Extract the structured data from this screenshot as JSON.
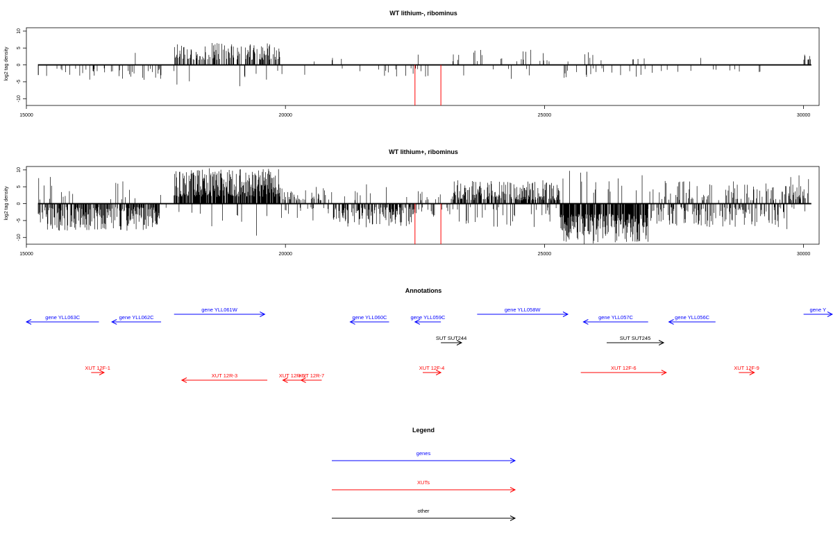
{
  "chart_data": [
    {
      "type": "bar",
      "title": "WT lithium-, ribominus",
      "ylabel": "log2 tag density",
      "xlim": [
        15000,
        30300
      ],
      "ylim": [
        -12,
        11
      ],
      "x_ticks": [
        15000,
        20000,
        25000,
        30000
      ],
      "x_tick_labels": [
        "15000",
        "20000",
        "25000",
        "30000"
      ],
      "y_ticks": [
        10,
        5,
        0,
        -5,
        -10
      ],
      "y_tick_labels": [
        "10",
        "5",
        "0",
        "-5",
        "-10"
      ],
      "grid": false,
      "track_range": [
        15230,
        30150
      ],
      "regions": [
        {
          "x0": 15230,
          "x1": 17600,
          "density": 0.15,
          "sign": -1,
          "min": 1,
          "max": 4.5,
          "neg_bias": 0.95
        },
        {
          "x0": 17850,
          "x1": 19900,
          "density": 0.5,
          "sign": 1,
          "min": 1.5,
          "max": 6.5,
          "neg_bias": 0.05
        },
        {
          "x0": 19900,
          "x1": 21000,
          "density": 0.04,
          "sign": 1,
          "min": 1,
          "max": 3,
          "neg_bias": 0.5
        },
        {
          "x0": 21000,
          "x1": 23200,
          "density": 0.05,
          "sign": -1,
          "min": 1,
          "max": 3.5,
          "neg_bias": 0.9
        },
        {
          "x0": 23200,
          "x1": 25100,
          "density": 0.12,
          "sign": 1,
          "min": 1,
          "max": 4.5,
          "neg_bias": 0.2
        },
        {
          "x0": 25300,
          "x1": 27000,
          "density": 0.12,
          "sign": 1,
          "min": 1,
          "max": 4,
          "neg_bias": 0.5
        },
        {
          "x0": 27000,
          "x1": 29300,
          "density": 0.04,
          "sign": -1,
          "min": 1,
          "max": 2.5,
          "neg_bias": 0.8
        },
        {
          "x0": 29900,
          "x1": 30150,
          "density": 0.2,
          "sign": 1,
          "min": 1.5,
          "max": 3.5,
          "neg_bias": 0.05
        }
      ],
      "highlight_lines": [
        {
          "x": 22500,
          "value": -12,
          "color": "#ff0000"
        },
        {
          "x": 23000,
          "value": -12,
          "color": "#ff0000"
        }
      ]
    },
    {
      "type": "bar",
      "title": "WT lithium+, ribominus",
      "ylabel": "log2 tag density",
      "xlim": [
        15000,
        30300
      ],
      "ylim": [
        -12,
        11
      ],
      "x_ticks": [
        15000,
        20000,
        25000,
        30000
      ],
      "x_tick_labels": [
        "15000",
        "20000",
        "25000",
        "30000"
      ],
      "y_ticks": [
        10,
        5,
        0,
        -5,
        -10
      ],
      "y_tick_labels": [
        "10",
        "5",
        "0",
        "-5",
        "-10"
      ],
      "grid": false,
      "track_range": [
        15230,
        30150
      ],
      "regions": [
        {
          "x0": 15230,
          "x1": 17600,
          "density": 0.7,
          "sign": -1,
          "min": 1,
          "max": 8,
          "neg_bias": 0.95
        },
        {
          "x0": 17600,
          "x1": 17850,
          "density": 0.05,
          "sign": 1,
          "min": 1,
          "max": 2,
          "neg_bias": 0.5
        },
        {
          "x0": 17850,
          "x1": 19900,
          "density": 0.9,
          "sign": 1,
          "min": 2,
          "max": 10.5,
          "neg_bias": 0.05
        },
        {
          "x0": 19900,
          "x1": 20900,
          "density": 0.4,
          "sign": 1,
          "min": 1,
          "max": 5,
          "neg_bias": 0.3
        },
        {
          "x0": 20900,
          "x1": 22500,
          "density": 0.6,
          "sign": -1,
          "min": 1,
          "max": 7,
          "neg_bias": 0.9
        },
        {
          "x0": 22500,
          "x1": 23200,
          "density": 0.3,
          "sign": 1,
          "min": 1,
          "max": 4,
          "neg_bias": 0.5
        },
        {
          "x0": 23200,
          "x1": 25300,
          "density": 0.75,
          "sign": 1,
          "min": 1,
          "max": 7,
          "neg_bias": 0.15
        },
        {
          "x0": 25300,
          "x1": 27000,
          "density": 0.95,
          "sign": -1,
          "min": 3,
          "max": 12,
          "neg_bias": 0.95
        },
        {
          "x0": 27000,
          "x1": 29600,
          "density": 0.6,
          "sign": -1,
          "min": 1,
          "max": 7,
          "neg_bias": 0.6
        },
        {
          "x0": 29600,
          "x1": 30150,
          "density": 0.4,
          "sign": 1,
          "min": 1,
          "max": 8.5,
          "neg_bias": 0.2
        }
      ],
      "highlight_lines": [
        {
          "x": 22500,
          "value": -12,
          "color": "#ff0000"
        },
        {
          "x": 23000,
          "value": -12,
          "color": "#ff0000"
        }
      ]
    }
  ],
  "annotations": {
    "title": "Annotations",
    "colors": {
      "gene": "#0000ff",
      "xut": "#ff0000",
      "other": "#000000"
    },
    "features": [
      {
        "label": "gene YLL063C",
        "class": "gene",
        "start": 15000,
        "end": 16400,
        "strand": "-",
        "row": 1
      },
      {
        "label": "gene YLL062C",
        "class": "gene",
        "start": 16650,
        "end": 17600,
        "strand": "-",
        "row": 1
      },
      {
        "label": "gene YLL061W",
        "class": "gene",
        "start": 17850,
        "end": 19600,
        "strand": "+",
        "row": 0
      },
      {
        "label": "gene YLL060C",
        "class": "gene",
        "start": 21250,
        "end": 22000,
        "strand": "-",
        "row": 1
      },
      {
        "label": "gene YLL059C",
        "class": "gene",
        "start": 22500,
        "end": 23000,
        "strand": "-",
        "row": 1
      },
      {
        "label": "gene YLL058W",
        "class": "gene",
        "start": 23700,
        "end": 25450,
        "strand": "+",
        "row": 0
      },
      {
        "label": "gene YLL057C",
        "class": "gene",
        "start": 25750,
        "end": 27000,
        "strand": "-",
        "row": 1
      },
      {
        "label": "gene YLL056C",
        "class": "gene",
        "start": 27400,
        "end": 28300,
        "strand": "-",
        "row": 1
      },
      {
        "label": "gene Y",
        "class": "gene",
        "start": 30000,
        "end": 30800,
        "strand": "+",
        "row": 0
      },
      {
        "label": "SUT SUT244",
        "class": "other",
        "start": 23000,
        "end": 23400,
        "strand": "+",
        "row": 2
      },
      {
        "label": "SUT SUT245",
        "class": "other",
        "start": 26200,
        "end": 27300,
        "strand": "+",
        "row": 2
      },
      {
        "label": "XUT 12F-1",
        "class": "xut",
        "start": 16250,
        "end": 16500,
        "strand": "+",
        "row": 3
      },
      {
        "label": "XUT 12R-3",
        "class": "xut",
        "start": 18000,
        "end": 19650,
        "strand": "-",
        "row": 4
      },
      {
        "label": "XUT 12R-5",
        "class": "xut",
        "start": 19950,
        "end": 20300,
        "strand": "-",
        "row": 4
      },
      {
        "label": "XUT 12R-7",
        "class": "xut",
        "start": 20300,
        "end": 20700,
        "strand": "-",
        "row": 4
      },
      {
        "label": "XUT 12F-4",
        "class": "xut",
        "start": 22650,
        "end": 23000,
        "strand": "+",
        "row": 3
      },
      {
        "label": "XUT 12F-6",
        "class": "xut",
        "start": 25700,
        "end": 27350,
        "strand": "+",
        "row": 3
      },
      {
        "label": "XUT 12F-9",
        "class": "xut",
        "start": 28750,
        "end": 29050,
        "strand": "+",
        "row": 3
      }
    ]
  },
  "legend": {
    "title": "Legend",
    "items": [
      {
        "label": "genes",
        "class": "gene"
      },
      {
        "label": "XUTs",
        "class": "xut"
      },
      {
        "label": "other",
        "class": "other"
      }
    ]
  }
}
